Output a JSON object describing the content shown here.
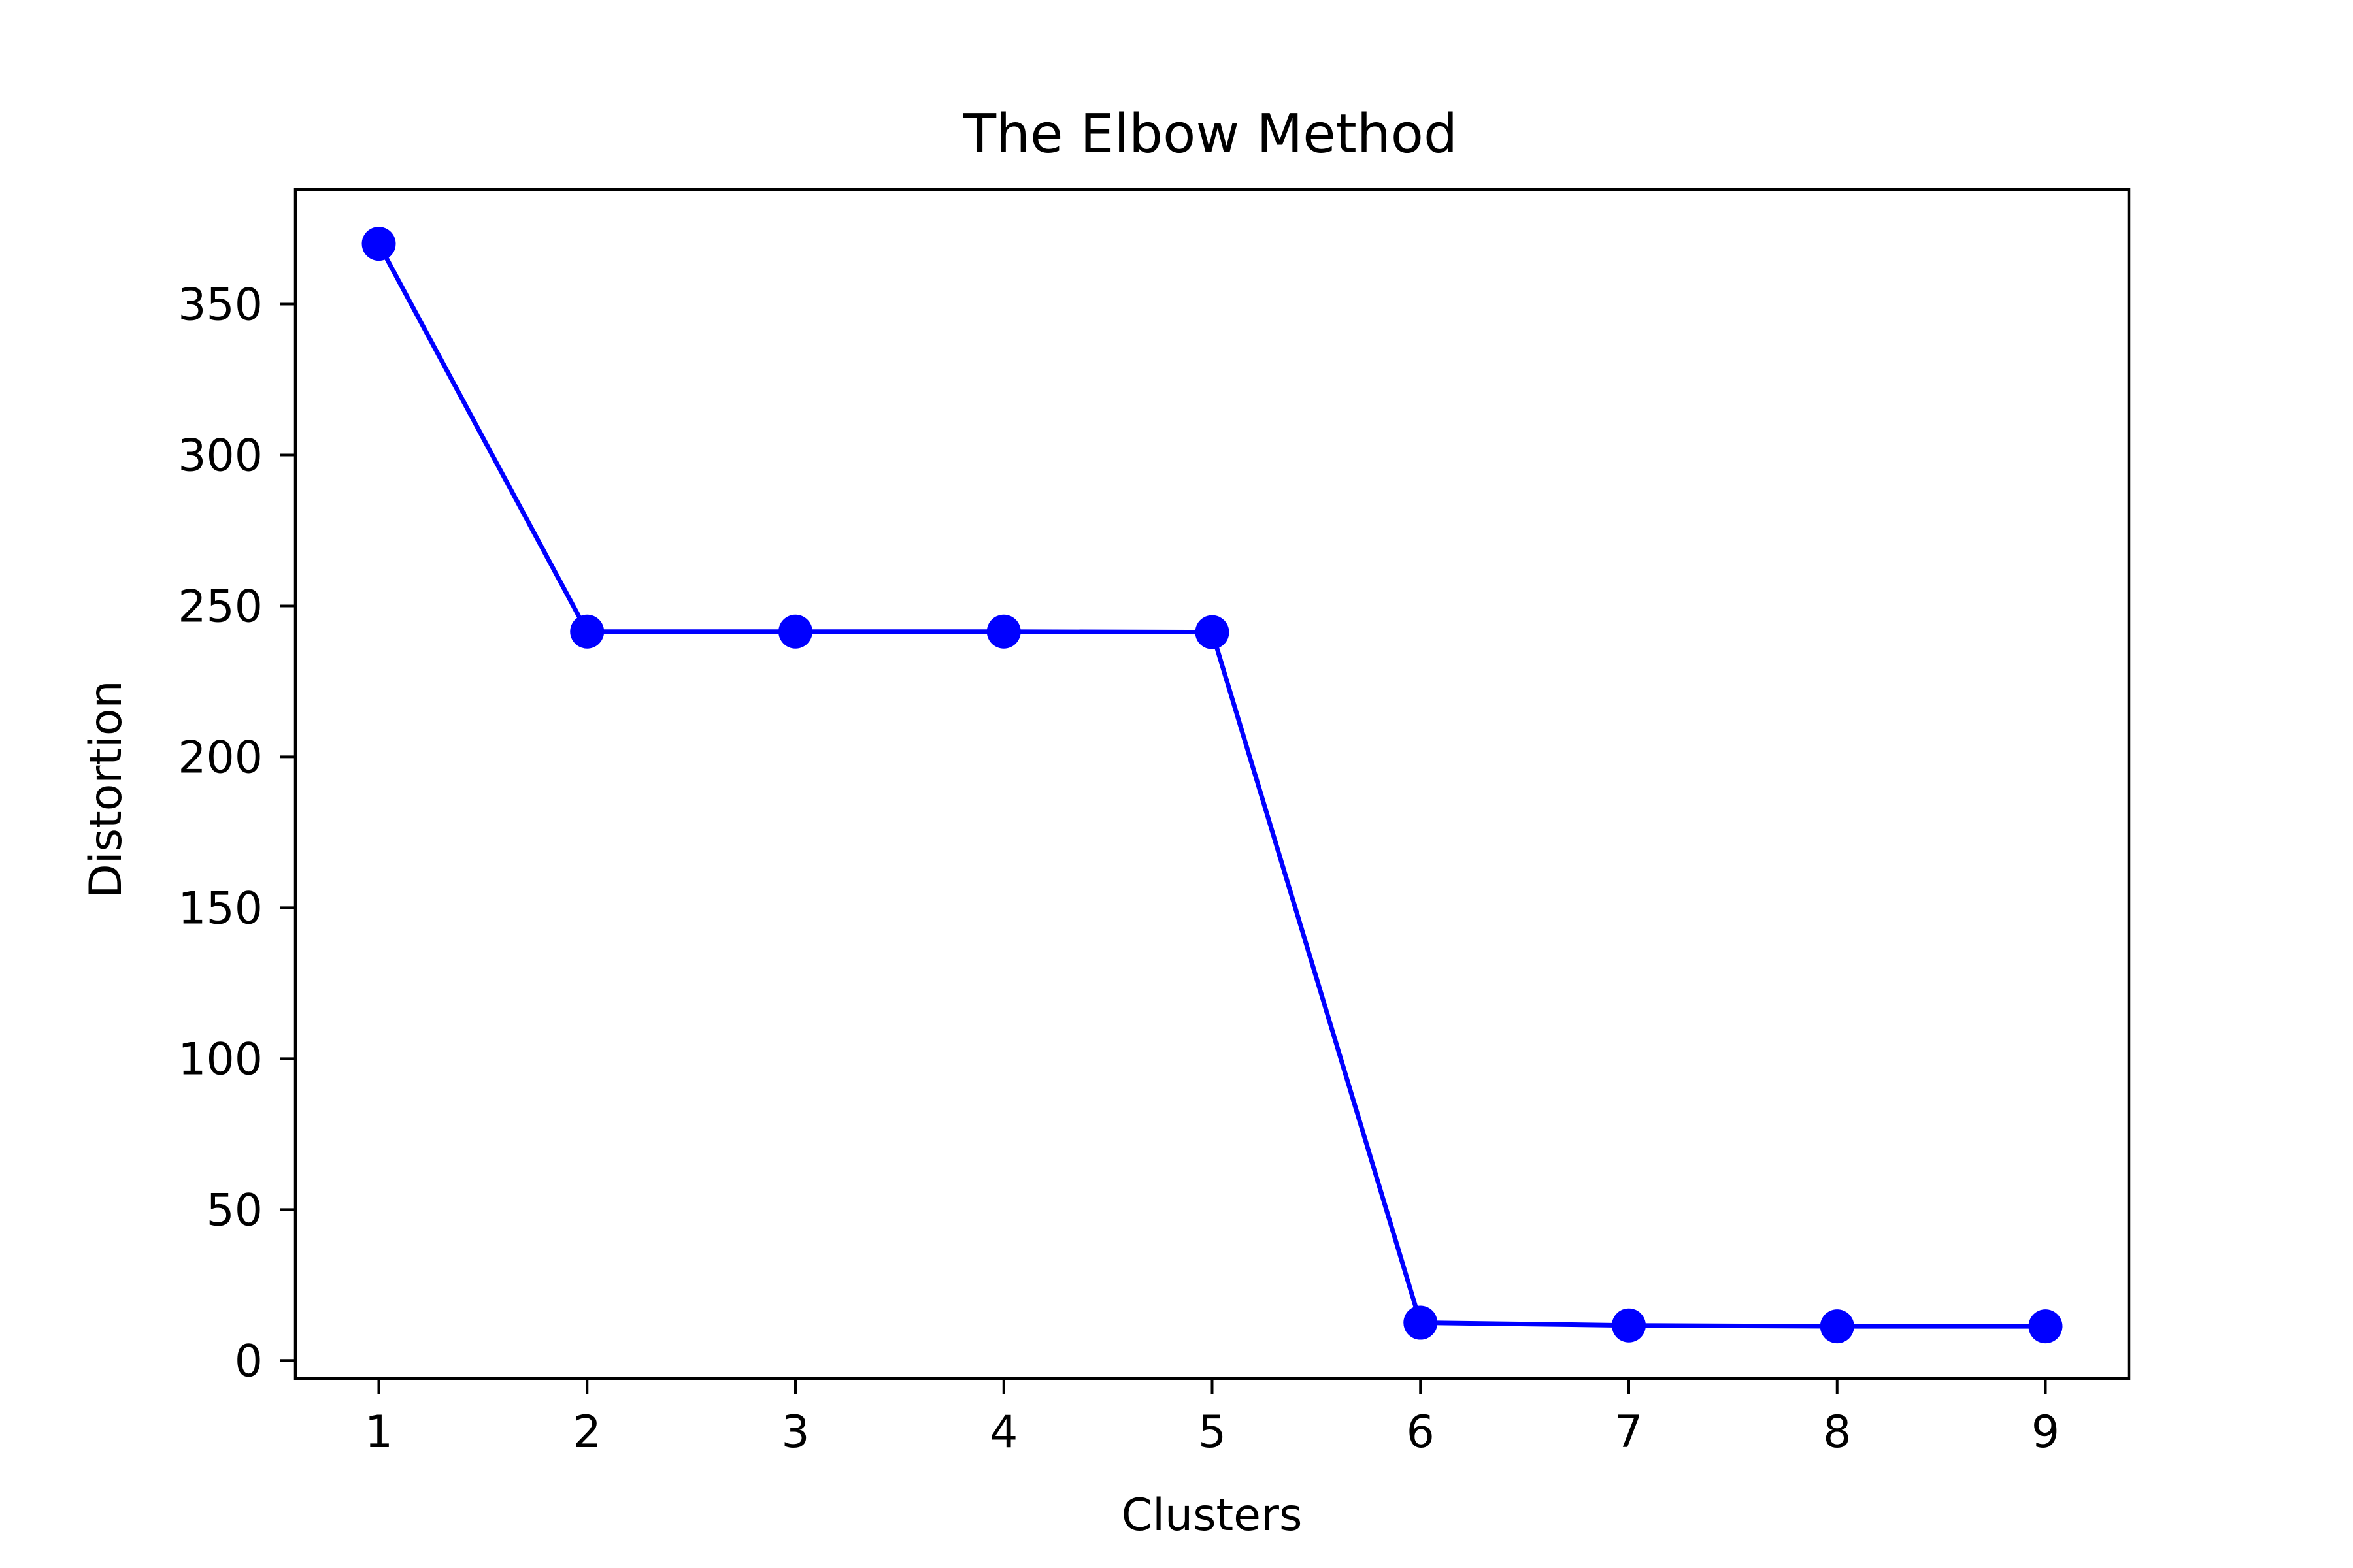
{
  "chart_data": {
    "type": "line",
    "title": "The Elbow Method",
    "xlabel": "Clusters",
    "ylabel": "Distortion",
    "x": [
      1,
      2,
      3,
      4,
      5,
      6,
      7,
      8,
      9
    ],
    "series": [
      {
        "values": [
          370.0,
          241.5,
          241.5,
          241.5,
          241.3,
          12.5,
          11.6,
          11.3,
          11.3
        ],
        "color": "#0000ff",
        "marker": "circle"
      }
    ],
    "xticks": [
      "1",
      "2",
      "3",
      "4",
      "5",
      "6",
      "7",
      "8",
      "9"
    ],
    "yticks": [
      "0",
      "50",
      "100",
      "150",
      "200",
      "250",
      "300",
      "350"
    ],
    "xlim": [
      0.6,
      9.4
    ],
    "ylim": [
      -6,
      388
    ],
    "grid": false,
    "legend": "none"
  }
}
